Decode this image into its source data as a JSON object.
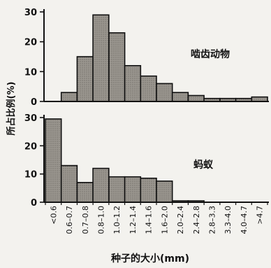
{
  "chart_data": [
    {
      "type": "bar",
      "title": "啮齿动物",
      "ylabel": "所占比例(%)",
      "xlabel": "种子的大小(mm)",
      "ylim": [
        0,
        30
      ],
      "yticks": [
        0,
        10,
        20,
        30
      ],
      "grid": false,
      "categories": [
        "<0.6",
        "0.6–0.7",
        "0.7–0.8",
        "0.8–1.0",
        "1.0–1.2",
        "1.2–1.4",
        "1.4–1.6",
        "1.6–2.0",
        "2.0–2.4",
        "2.4–2.8",
        "2.8–3.3",
        "3.3–4.0",
        "4.0–4.7",
        ">4.7"
      ],
      "values": [
        0,
        3,
        15,
        29,
        23,
        12,
        8.5,
        6,
        3,
        2,
        1,
        1,
        1,
        1.5
      ]
    },
    {
      "type": "bar",
      "title": "蚂蚁",
      "ylabel": "所占比例(%)",
      "xlabel": "种子的大小(mm)",
      "ylim": [
        0,
        30
      ],
      "yticks": [
        0,
        10,
        20,
        30
      ],
      "grid": false,
      "categories": [
        "<0.6",
        "0.6–0.7",
        "0.7–0.8",
        "0.8–1.0",
        "1.0–1.2",
        "1.2–1.4",
        "1.4–1.6",
        "1.6–2.0",
        "2.0–2.4",
        "2.4–2.8",
        "2.8–3.3",
        "3.3–4.0",
        "4.0–4.7",
        ">4.7"
      ],
      "values": [
        29.5,
        13,
        7,
        12,
        9,
        9,
        8.5,
        7.5,
        0.5,
        0.5,
        0,
        0,
        0,
        0
      ]
    }
  ],
  "labels": {
    "ylabel": "所占比例(%)",
    "xlabel": "种子的大小(mm)",
    "top_panel_title": "啮齿动物",
    "bottom_panel_title": "蚂蚁"
  },
  "colors": {
    "bar_fill": "#8a8680",
    "bar_stroke": "#111111",
    "axis": "#111111",
    "background": "#f3f2ee"
  }
}
